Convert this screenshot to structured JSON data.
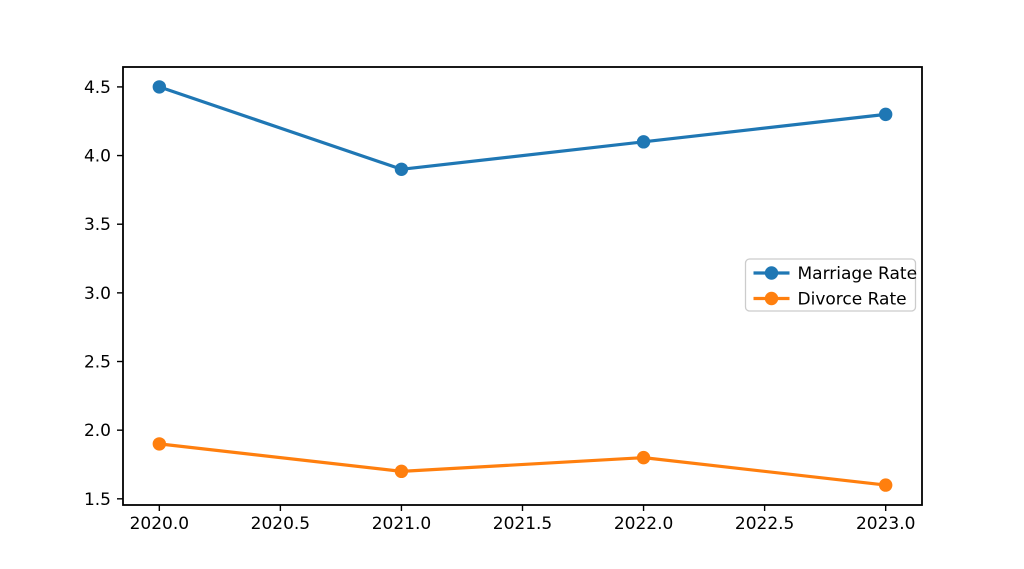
{
  "chart_data": {
    "type": "line",
    "title": "",
    "xlabel": "",
    "ylabel": "",
    "x": [
      2020,
      2021,
      2022,
      2023
    ],
    "series": [
      {
        "name": "Marriage Rate",
        "color": "#1f77b4",
        "values": [
          4.5,
          3.9,
          4.1,
          4.3
        ],
        "marker": "circle"
      },
      {
        "name": "Divorce Rate",
        "color": "#ff7f0e",
        "values": [
          1.9,
          1.7,
          1.8,
          1.6
        ],
        "marker": "circle"
      }
    ],
    "xlim": [
      2019.85,
      2023.15
    ],
    "ylim": [
      1.455,
      4.645
    ],
    "x_ticks": [
      2020.0,
      2020.5,
      2021.0,
      2021.5,
      2022.0,
      2022.5,
      2023.0
    ],
    "x_tick_labels": [
      "2020.0",
      "2020.5",
      "2021.0",
      "2021.5",
      "2022.0",
      "2022.5",
      "2023.0"
    ],
    "y_ticks": [
      1.5,
      2.0,
      2.5,
      3.0,
      3.5,
      4.0,
      4.5
    ],
    "y_tick_labels": [
      "1.5",
      "2.0",
      "2.5",
      "3.0",
      "3.5",
      "4.0",
      "4.5"
    ],
    "grid": false,
    "legend": {
      "position": "center right",
      "entries": [
        "Marriage Rate",
        "Divorce Rate"
      ],
      "border_color": "#cccccc",
      "background": "#ffffff"
    },
    "colors": {
      "spine": "#000000",
      "tick_label": "#000000",
      "plot_background": "#ffffff"
    }
  }
}
